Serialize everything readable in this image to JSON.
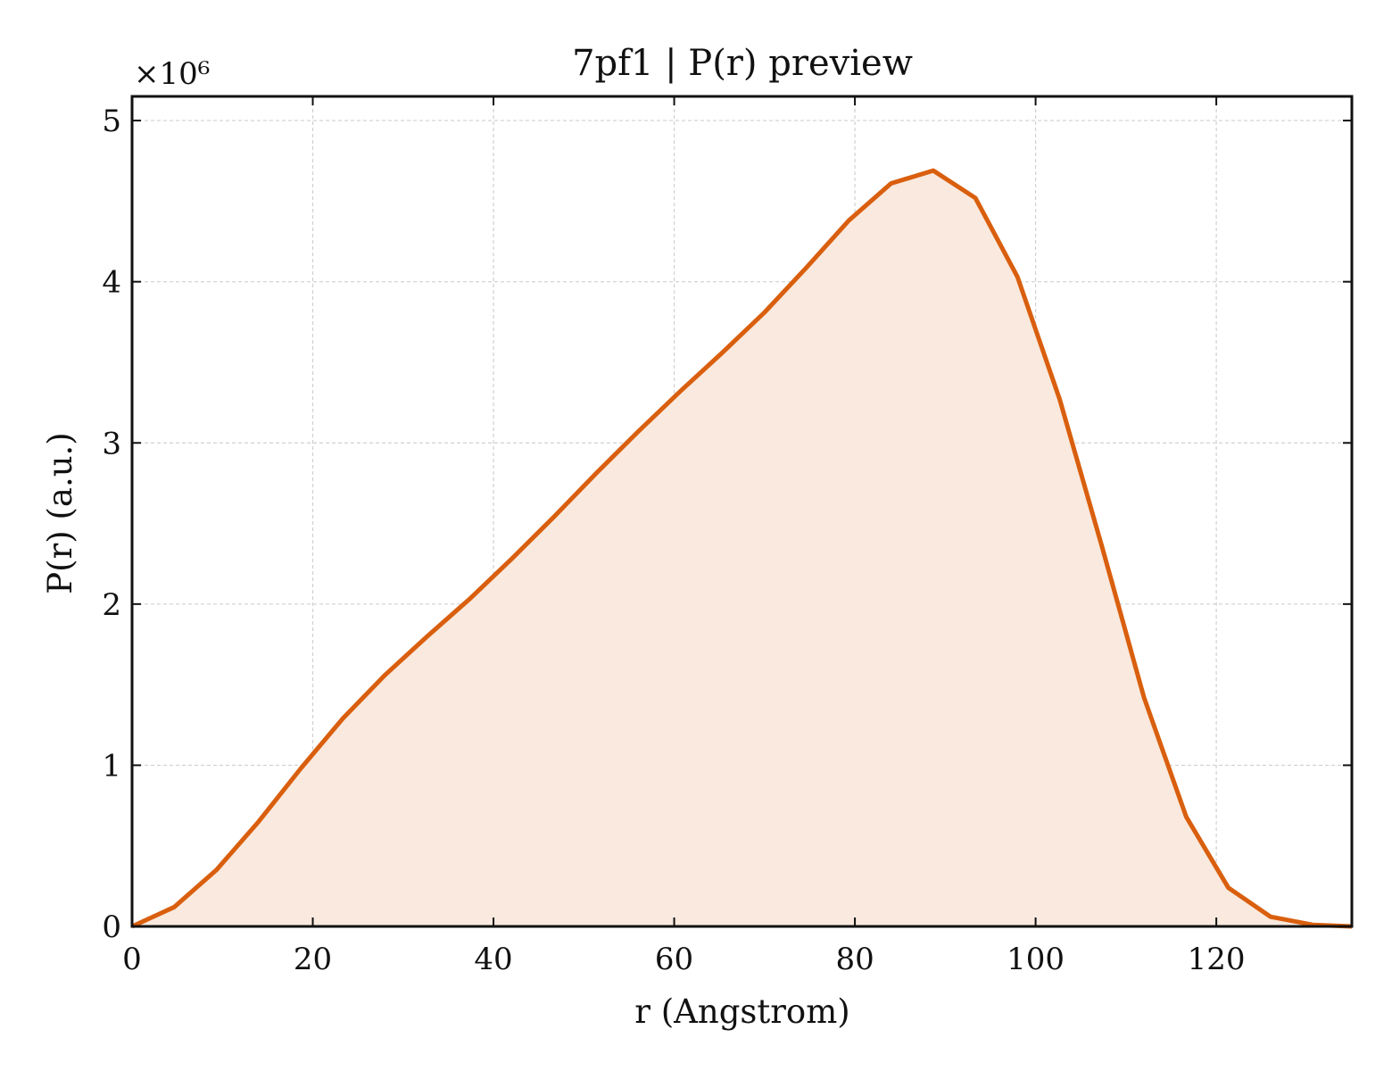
{
  "chart_data": {
    "type": "area",
    "title": "7pf1 | P(r) preview",
    "xlabel": "r (Angstrom)",
    "ylabel": "P(r) (a.u.)",
    "y_multiplier": "×10⁶",
    "xlim": [
      0,
      135
    ],
    "ylim": [
      0,
      5.15
    ],
    "xticks": [
      0,
      20,
      40,
      60,
      80,
      100,
      120
    ],
    "yticks": [
      0,
      1,
      2,
      3,
      4,
      5
    ],
    "grid": true,
    "line_color": "#d95f0e",
    "fill_color": "#f9e9de",
    "series": [
      {
        "x": [
          0,
          4.67,
          9.33,
          14.0,
          18.67,
          23.33,
          28.0,
          32.67,
          37.33,
          42.0,
          46.67,
          51.33,
          56.0,
          60.67,
          65.33,
          70.0,
          74.67,
          79.33,
          84.0,
          88.67,
          93.33,
          98.0,
          102.67,
          107.33,
          112.0,
          116.67,
          121.33,
          126.0,
          130.67,
          135.0
        ],
        "y": [
          0.0,
          0.12,
          0.35,
          0.65,
          0.98,
          1.29,
          1.56,
          1.8,
          2.03,
          2.28,
          2.54,
          2.81,
          3.07,
          3.32,
          3.56,
          3.81,
          4.09,
          4.38,
          4.61,
          4.69,
          4.52,
          4.03,
          3.27,
          2.36,
          1.42,
          0.68,
          0.24,
          0.06,
          0.01,
          0.0
        ]
      }
    ]
  }
}
